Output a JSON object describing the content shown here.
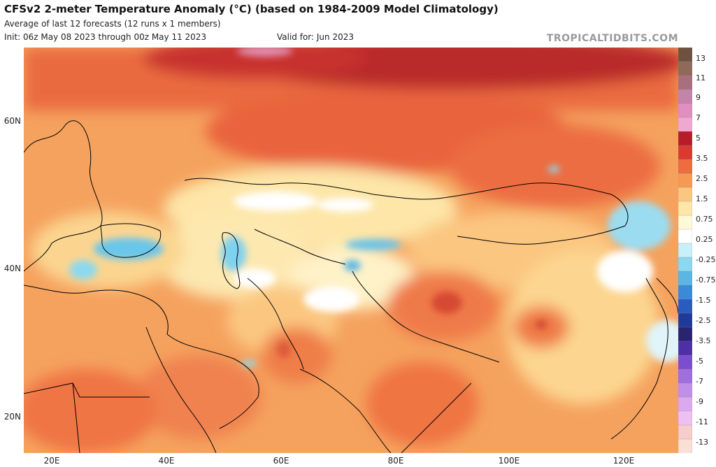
{
  "header": {
    "title": "CFSv2 2-meter Temperature Anomaly (°C) (based on 1984-2009 Model Climatology)",
    "subtitle": "Average of last 12 forecasts (12 runs x 1 members)",
    "init": "Init: 06z May 08 2023 through 00z May 11 2023",
    "valid": "Valid for: Jun 2023",
    "brand": "TROPICALTIDBITS.COM"
  },
  "map": {
    "lat_labels": [
      "60N",
      "40N",
      "20N"
    ],
    "lon_labels": [
      "20E",
      "40E",
      "60E",
      "80E",
      "100E",
      "120E"
    ]
  },
  "colorbar": {
    "labels": [
      "13",
      "11",
      "9",
      "7",
      "5",
      "3.5",
      "2.5",
      "1.5",
      "0.75",
      "0.25",
      "-0.25",
      "-0.75",
      "-1.5",
      "-2.5",
      "-3.5",
      "-5",
      "-7",
      "-9",
      "-11",
      "-13"
    ],
    "colors": [
      "#6e5240",
      "#8f6a5a",
      "#a8707e",
      "#c484a8",
      "#e08fc0",
      "#f0a8d0",
      "#b81c2a",
      "#dc3a30",
      "#ef6b40",
      "#f59a55",
      "#fbc780",
      "#fde6a8",
      "#fefad8",
      "#ffffff",
      "#c8f0f8",
      "#8cd8ee",
      "#5cb6e4",
      "#3a8ad8",
      "#2a5cc0",
      "#1f3a98",
      "#2a2470",
      "#4e2fa8",
      "#7b4dd0",
      "#9f6fe0",
      "#c090e8",
      "#dca8ee",
      "#eec0f2",
      "#f6cccc",
      "#fae0d4"
    ]
  }
}
